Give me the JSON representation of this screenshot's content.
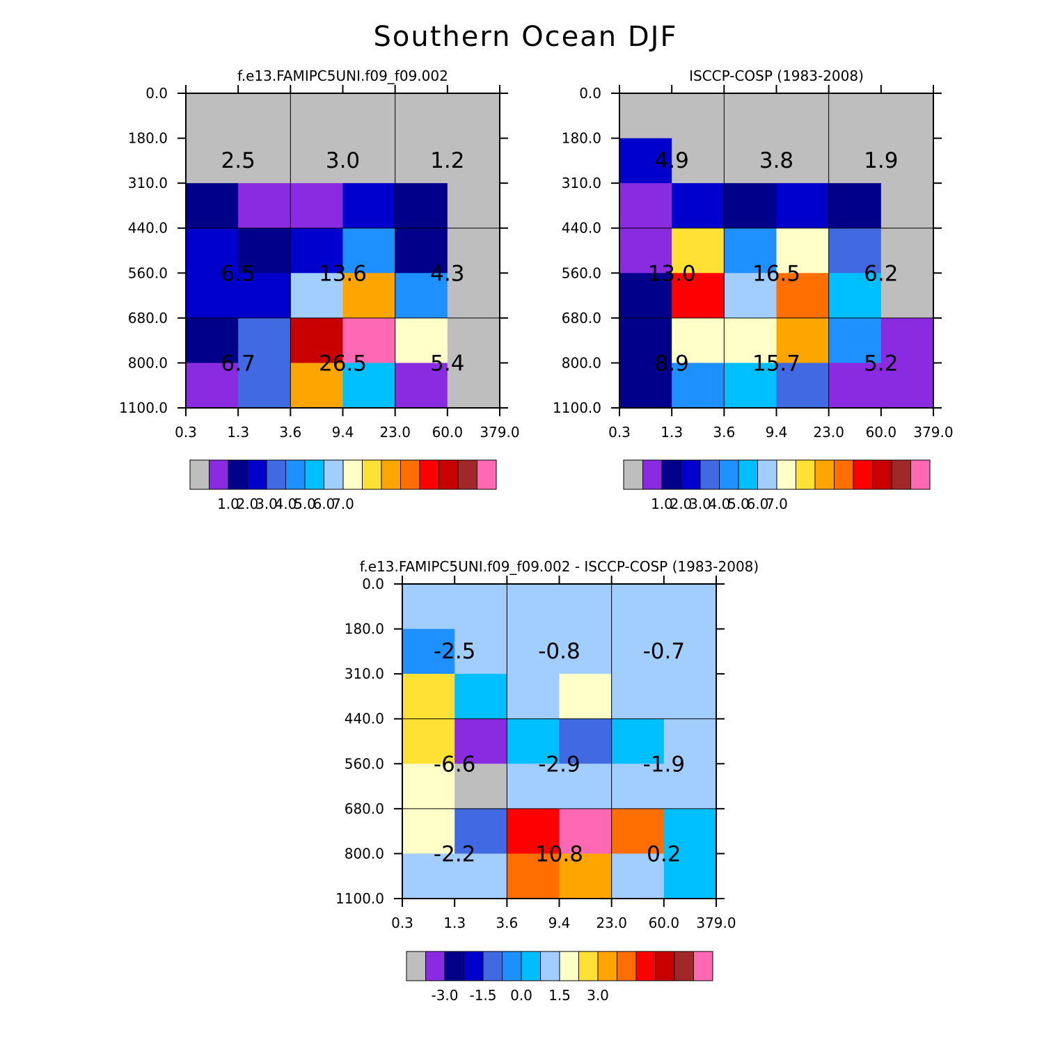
{
  "title": "Southern Ocean DJF",
  "palette": {
    "lev": [
      "#bebebe",
      "#8a2be2",
      "#00008b",
      "#0000cd",
      "#4169e1",
      "#1e90ff",
      "#00bfff",
      "#a2cdff",
      "#ffffc8",
      "#ffe135",
      "#ffa500",
      "#ff6e00",
      "#ff0000",
      "#c80000",
      "#a02828",
      "#ff69b4"
    ],
    "diff": [
      "#bebebe",
      "#8a2be2",
      "#00008b",
      "#0000cd",
      "#4169e1",
      "#1e90ff",
      "#00bfff",
      "#a2cdff",
      "#ffffc8",
      "#ffe135",
      "#ffa500",
      "#ff6e00",
      "#ff0000",
      "#c80000",
      "#a02828",
      "#ff69b4"
    ]
  },
  "chart_data": [
    {
      "type": "heatmap",
      "title": "f.e13.FAMIPC5UNI.f09_f09.002",
      "x_ticks": [
        "0.3",
        "1.3",
        "3.6",
        "9.4",
        "23.0",
        "60.0",
        "379.0"
      ],
      "y_ticks": [
        "0.0",
        "180.0",
        "310.0",
        "440.0",
        "560.0",
        "680.0",
        "800.0",
        "1100.0"
      ],
      "cells": [
        [
          0,
          0,
          0,
          0,
          0,
          0
        ],
        [
          0,
          0,
          0,
          0,
          0,
          0
        ],
        [
          2,
          1,
          1,
          3,
          2,
          0
        ],
        [
          3,
          2,
          3,
          5,
          2,
          0
        ],
        [
          3,
          3,
          7,
          10,
          5,
          0
        ],
        [
          2,
          4,
          13,
          15,
          8,
          0
        ],
        [
          1,
          4,
          10,
          6,
          1,
          0
        ]
      ],
      "annotations": [
        [
          "2.5",
          "3.0",
          "1.2"
        ],
        [
          "6.5",
          "13.6",
          "4.3"
        ],
        [
          "6.7",
          "26.5",
          "5.4"
        ]
      ],
      "colorbar": {
        "palette": "lev",
        "labels": [
          "1.0",
          "2.0",
          "3.0",
          "4.0",
          "5.0",
          "6.0",
          "7.0"
        ]
      }
    },
    {
      "type": "heatmap",
      "title": "ISCCP-COSP (1983-2008)",
      "x_ticks": [
        "0.3",
        "1.3",
        "3.6",
        "9.4",
        "23.0",
        "60.0",
        "379.0"
      ],
      "y_ticks": [
        "0.0",
        "180.0",
        "310.0",
        "440.0",
        "560.0",
        "680.0",
        "800.0",
        "1100.0"
      ],
      "cells": [
        [
          0,
          0,
          0,
          0,
          0,
          0
        ],
        [
          3,
          0,
          0,
          0,
          0,
          0
        ],
        [
          1,
          3,
          2,
          3,
          2,
          0
        ],
        [
          1,
          9,
          5,
          8,
          4,
          0
        ],
        [
          2,
          12,
          7,
          11,
          6,
          0
        ],
        [
          2,
          8,
          8,
          10,
          5,
          1
        ],
        [
          2,
          5,
          6,
          4,
          1,
          1
        ]
      ],
      "annotations": [
        [
          "4.9",
          "3.8",
          "1.9"
        ],
        [
          "13.0",
          "16.5",
          "6.2"
        ],
        [
          "8.9",
          "15.7",
          "5.2"
        ]
      ],
      "colorbar": {
        "palette": "lev",
        "labels": [
          "1.0",
          "2.0",
          "3.0",
          "4.0",
          "5.0",
          "6.0",
          "7.0"
        ]
      }
    },
    {
      "type": "heatmap",
      "title": "f.e13.FAMIPC5UNI.f09_f09.002 - ISCCP-COSP (1983-2008)",
      "x_ticks": [
        "0.3",
        "1.3",
        "3.6",
        "9.4",
        "23.0",
        "60.0",
        "379.0"
      ],
      "y_ticks": [
        "0.0",
        "180.0",
        "310.0",
        "440.0",
        "560.0",
        "680.0",
        "800.0",
        "1100.0"
      ],
      "cells": [
        [
          7,
          7,
          7,
          7,
          7,
          7
        ],
        [
          5,
          7,
          7,
          7,
          7,
          7
        ],
        [
          9,
          6,
          7,
          8,
          7,
          7
        ],
        [
          9,
          1,
          6,
          4,
          6,
          7
        ],
        [
          8,
          0,
          7,
          7,
          7,
          7
        ],
        [
          8,
          4,
          12,
          15,
          11,
          6
        ],
        [
          7,
          7,
          11,
          10,
          7,
          6
        ]
      ],
      "annotations": [
        [
          "-2.5",
          "-0.8",
          "-0.7"
        ],
        [
          "-6.6",
          "-2.9",
          "-1.9"
        ],
        [
          "-2.2",
          "10.8",
          "0.2"
        ]
      ],
      "colorbar": {
        "palette": "diff",
        "labels": [
          "-3.0",
          "-1.5",
          "0.0",
          "1.5",
          "3.0"
        ]
      }
    }
  ]
}
